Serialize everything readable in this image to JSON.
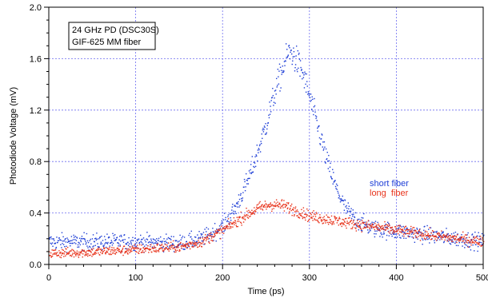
{
  "chart_data": {
    "type": "scatter",
    "title": "",
    "xlabel": "Time (ps)",
    "ylabel": "Photodiode Voltage (mV)",
    "xlim": [
      0,
      500
    ],
    "ylim": [
      0.0,
      2.0
    ],
    "x_ticks": [
      "0",
      "100",
      "200",
      "300",
      "400",
      "500"
    ],
    "y_ticks": [
      "0.0",
      "0.4",
      "0.8",
      "1.2",
      "1.6",
      "2.0"
    ],
    "grid": true,
    "annotation_lines": [
      "24 GHz PD (DSC30S)",
      "GIF-625 MM fiber"
    ],
    "legend_placement": "center-right",
    "series": [
      {
        "name": "short fiber",
        "color": "#1f3fd6",
        "x": [
          0,
          50,
          100,
          150,
          175,
          200,
          215,
          230,
          240,
          250,
          260,
          270,
          275,
          280,
          290,
          300,
          310,
          320,
          330,
          340,
          350,
          360,
          375,
          400,
          450,
          500
        ],
        "values": [
          0.18,
          0.18,
          0.18,
          0.17,
          0.2,
          0.3,
          0.45,
          0.68,
          0.88,
          1.1,
          1.35,
          1.55,
          1.65,
          1.64,
          1.52,
          1.3,
          1.05,
          0.8,
          0.6,
          0.45,
          0.37,
          0.32,
          0.28,
          0.26,
          0.22,
          0.18
        ]
      },
      {
        "name": "long  fiber",
        "color": "#e8341c",
        "x": [
          0,
          50,
          100,
          150,
          175,
          200,
          220,
          240,
          255,
          270,
          285,
          300,
          325,
          350,
          400,
          450,
          500
        ],
        "values": [
          0.09,
          0.1,
          0.12,
          0.14,
          0.18,
          0.27,
          0.36,
          0.44,
          0.47,
          0.46,
          0.42,
          0.38,
          0.35,
          0.32,
          0.27,
          0.22,
          0.18
        ]
      }
    ]
  }
}
